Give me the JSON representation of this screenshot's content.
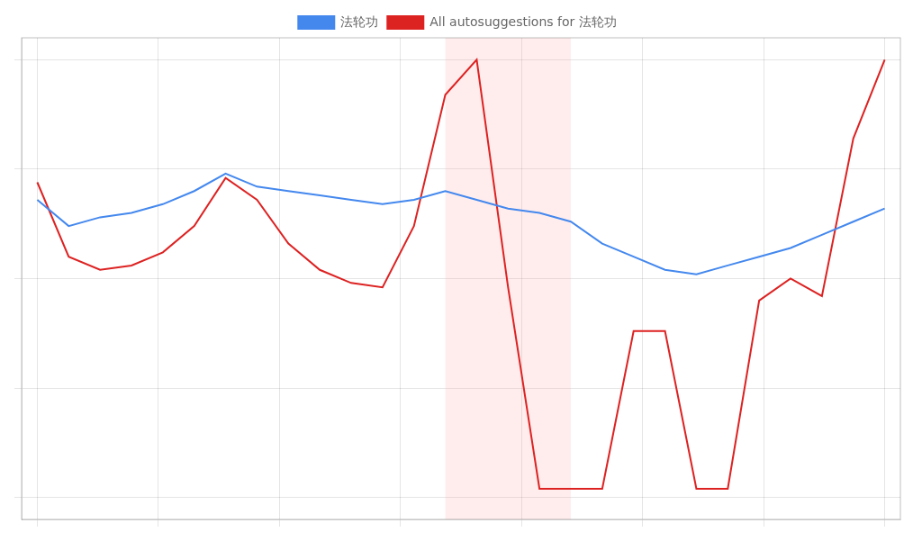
{
  "chart_data": {
    "type": "line",
    "x": [
      0,
      1,
      2,
      3,
      4,
      5,
      6,
      7,
      8,
      9,
      10,
      11,
      12,
      13,
      14,
      15,
      16,
      17,
      18,
      19,
      20,
      21,
      22,
      23,
      24,
      25,
      26,
      27
    ],
    "series": [
      {
        "name": "法轮功",
        "color": "#4488EE",
        "values": [
          68,
          62,
          64,
          65,
          67,
          70,
          74,
          71,
          70,
          69,
          68,
          67,
          68,
          70,
          68,
          66,
          65,
          63,
          58,
          55,
          52,
          51,
          53,
          55,
          57,
          60,
          63,
          66
        ]
      },
      {
        "name": "All autosuggestions for 法轮功",
        "color": "#DD2222",
        "values": [
          72,
          55,
          52,
          53,
          56,
          62,
          73,
          68,
          58,
          52,
          49,
          48,
          62,
          92,
          100,
          48,
          2,
          2,
          2,
          38,
          38,
          2,
          2,
          45,
          50,
          46,
          82,
          100
        ]
      }
    ],
    "xlim": [
      -0.5,
      27.5
    ],
    "xticks": [
      0,
      3.857142857142857,
      7.714285714285714,
      11.571428571428571,
      15.428571428571429,
      19.285714285714285,
      23.142857142857142,
      27
    ],
    "ylim": [
      -5,
      105
    ],
    "yticks": [
      0,
      25,
      50,
      75,
      100
    ],
    "grid": true,
    "tick_labels": false,
    "legend": "top",
    "highlight": {
      "range": [
        13,
        17
      ],
      "color": "#FF9999"
    }
  }
}
